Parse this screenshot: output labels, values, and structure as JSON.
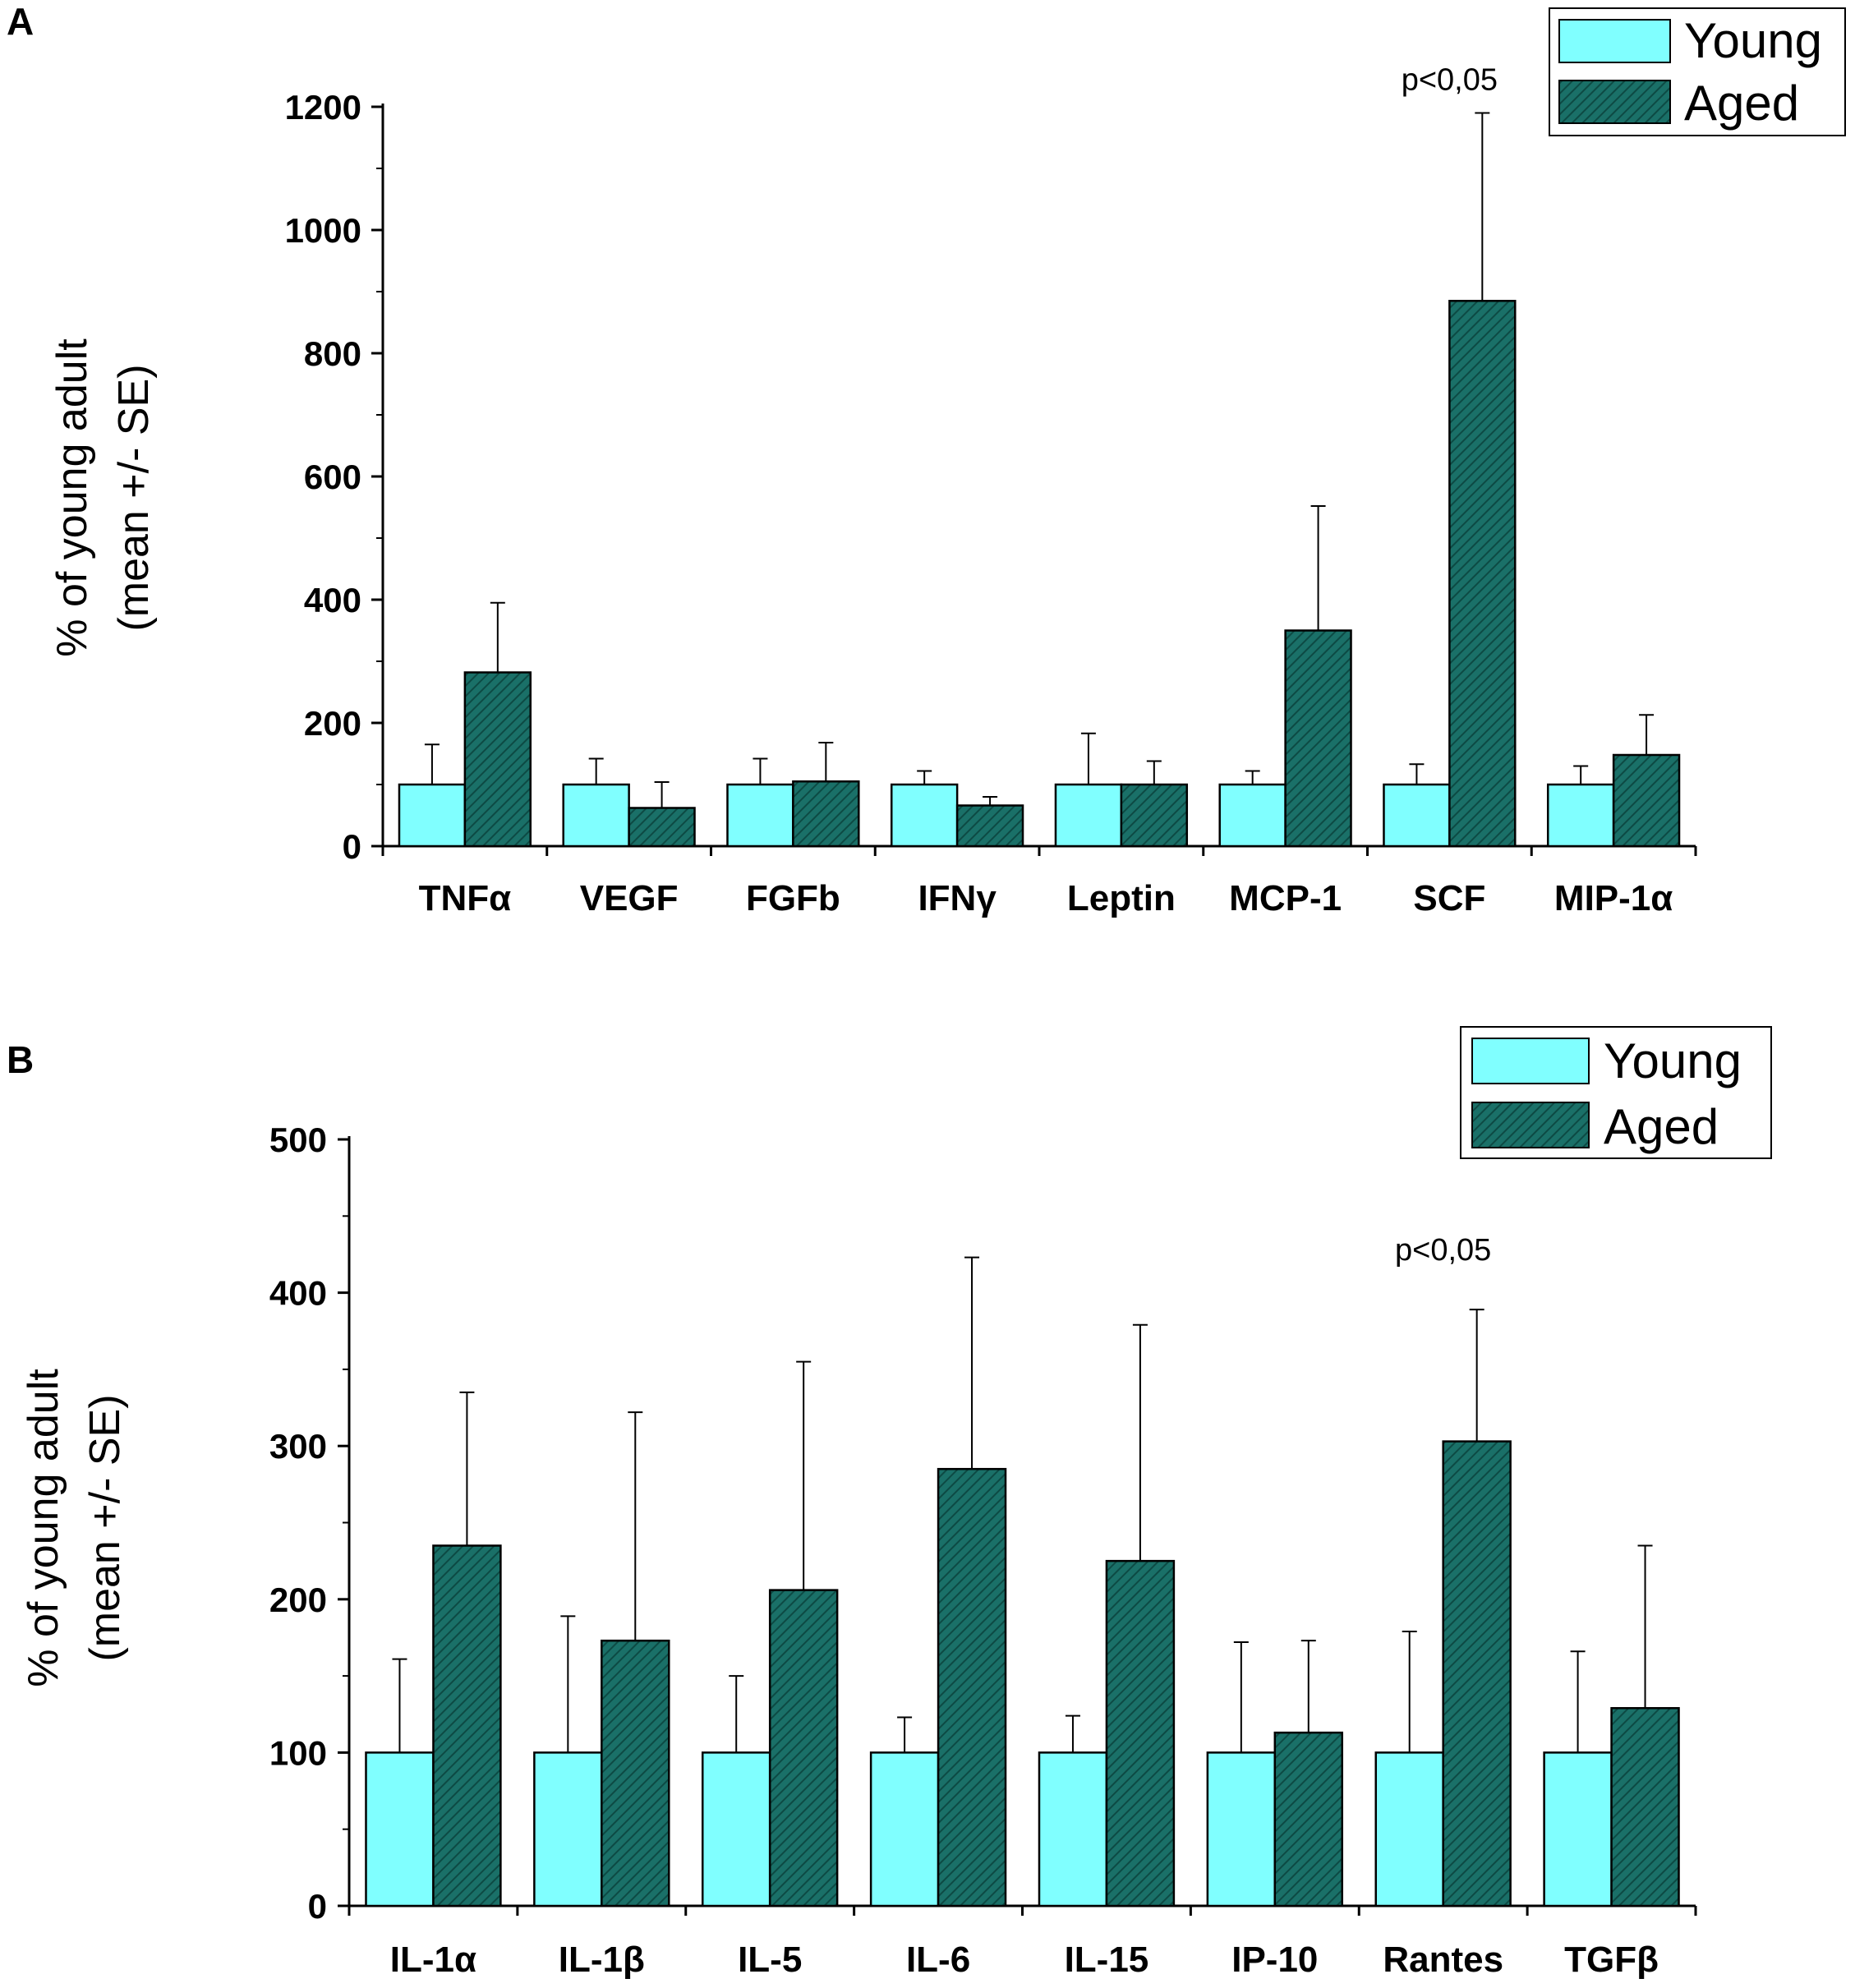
{
  "colors": {
    "young": "#80ffff",
    "aged": "#1a7068",
    "aged_hatch": "#0d4a44",
    "axis": "#000000"
  },
  "chart_data": [
    {
      "panel": "A",
      "type": "bar",
      "ylabel_line1": "% of young adult",
      "ylabel_line2": "(mean +/- SE)",
      "ylim": [
        0,
        1200
      ],
      "yticks": [
        0,
        200,
        400,
        600,
        800,
        1000,
        1200
      ],
      "categories": [
        "TNFα",
        "VEGF",
        "FGFb",
        "IFNγ",
        "Leptin",
        "MCP-1",
        "SCF",
        "MIP-1α"
      ],
      "series": [
        {
          "name": "Young",
          "values": [
            100,
            100,
            100,
            100,
            100,
            100,
            100,
            100
          ],
          "errors": [
            65,
            42,
            42,
            22,
            83,
            22,
            33,
            30
          ]
        },
        {
          "name": "Aged",
          "values": [
            282,
            62,
            105,
            66,
            100,
            350,
            885,
            148
          ],
          "errors": [
            113,
            42,
            63,
            14,
            38,
            202,
            305,
            65
          ]
        }
      ],
      "legend": [
        "Young",
        "Aged"
      ],
      "legend_position": "top-right",
      "annotation": {
        "text": "p<0,05",
        "category": "SCF"
      }
    },
    {
      "panel": "B",
      "type": "bar",
      "ylabel_line1": "% of young adult",
      "ylabel_line2": "(mean +/- SE)",
      "ylim": [
        0,
        500
      ],
      "yticks": [
        0,
        100,
        200,
        300,
        400,
        500
      ],
      "categories": [
        "IL-1α",
        "IL-1β",
        "IL-5",
        "IL-6",
        "IL-15",
        "IP-10",
        "Rantes",
        "TGFβ"
      ],
      "series": [
        {
          "name": "Young",
          "values": [
            100,
            100,
            100,
            100,
            100,
            100,
            100,
            100
          ],
          "errors": [
            61,
            89,
            50,
            23,
            24,
            72,
            79,
            66
          ]
        },
        {
          "name": "Aged",
          "values": [
            235,
            173,
            206,
            285,
            225,
            113,
            303,
            129
          ],
          "errors": [
            100,
            149,
            149,
            138,
            154,
            60,
            86,
            106
          ]
        }
      ],
      "legend": [
        "Young",
        "Aged"
      ],
      "legend_position": "top-right",
      "annotation": {
        "text": "p<0,05",
        "category": "Rantes"
      }
    }
  ]
}
